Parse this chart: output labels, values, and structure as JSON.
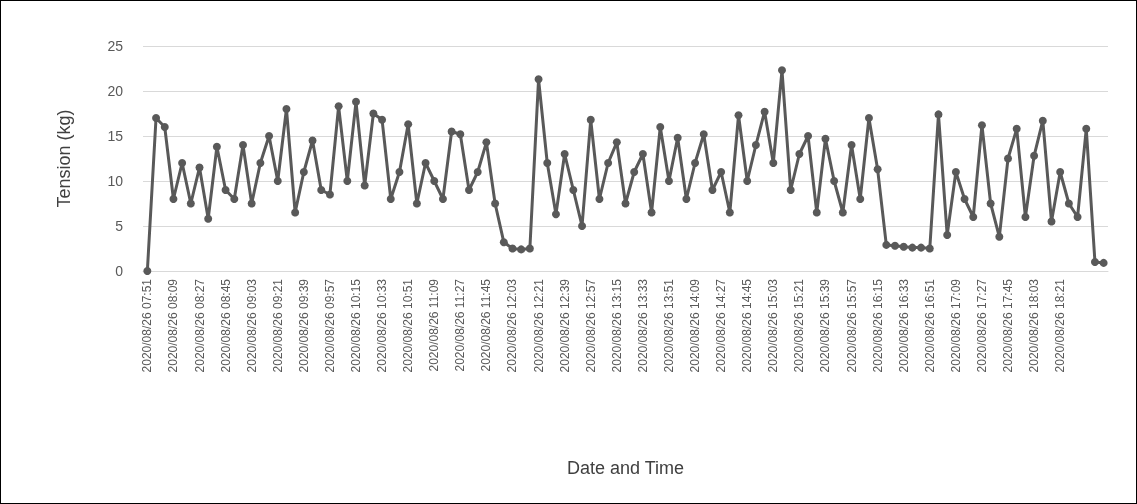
{
  "chart_data": {
    "type": "line",
    "xlabel": "Date and Time",
    "ylabel": "Tension (kg)",
    "categories": [
      "2020/08/26 07:51",
      null,
      null,
      "2020/08/26 08:09",
      null,
      null,
      "2020/08/26 08:27",
      null,
      null,
      "2020/08/26 08:45",
      null,
      null,
      "2020/08/26 09:03",
      null,
      null,
      "2020/08/26 09:21",
      null,
      null,
      "2020/08/26 09:39",
      null,
      null,
      "2020/08/26 09:57",
      null,
      null,
      "2020/08/26 10:15",
      null,
      null,
      "2020/08/26 10:33",
      null,
      null,
      "2020/08/26 10:51",
      null,
      null,
      "2020/08/26 11:09",
      null,
      null,
      "2020/08/26 11:27",
      null,
      null,
      "2020/08/26 11:45",
      null,
      null,
      "2020/08/26 12:03",
      null,
      null,
      "2020/08/26 12:21",
      null,
      null,
      "2020/08/26 12:39",
      null,
      null,
      "2020/08/26 12:57",
      null,
      null,
      "2020/08/26 13:15",
      null,
      null,
      "2020/08/26 13:33",
      null,
      null,
      "2020/08/26 13:51",
      null,
      null,
      "2020/08/26 14:09",
      null,
      null,
      "2020/08/26 14:27",
      null,
      null,
      "2020/08/26 14:45",
      null,
      null,
      "2020/08/26 15:03",
      null,
      null,
      "2020/08/26 15:21",
      null,
      null,
      "2020/08/26 15:39",
      null,
      null,
      "2020/08/26 15:57",
      null,
      null,
      "2020/08/26 16:15",
      null,
      null,
      "2020/08/26 16:33",
      null,
      null,
      "2020/08/26 16:51",
      null,
      null,
      "2020/08/26 17:09",
      null,
      null,
      "2020/08/26 17:27",
      null,
      null,
      "2020/08/26 17:45",
      null,
      null,
      "2020/08/26 18:03",
      null,
      null,
      "2020/08/26 18:21",
      null,
      null,
      null,
      null,
      null
    ],
    "series": [
      {
        "color": "#595959",
        "values": [
          0,
          17,
          16,
          8,
          12,
          7.5,
          11.5,
          5.8,
          13.8,
          9,
          8,
          14,
          7.5,
          12,
          15,
          10,
          18,
          6.5,
          11,
          14.5,
          9,
          8.5,
          18.3,
          10,
          18.8,
          9.5,
          17.5,
          16.8,
          8,
          11,
          16.3,
          7.5,
          12,
          10,
          8,
          15.5,
          15.2,
          9,
          11,
          14.3,
          7.5,
          3.2,
          2.5,
          2.4,
          2.5,
          21.3,
          12,
          6.3,
          13,
          9,
          5,
          16.8,
          8,
          12,
          14.3,
          7.5,
          11,
          13,
          6.5,
          16,
          10,
          14.8,
          8,
          12,
          15.2,
          9,
          11,
          6.5,
          17.3,
          10,
          14,
          17.7,
          12,
          22.3,
          9,
          13,
          15,
          6.5,
          14.7,
          10,
          6.5,
          14,
          8,
          17,
          11.3,
          2.9,
          2.8,
          2.7,
          2.6,
          2.6,
          2.5,
          17.4,
          4,
          11,
          8,
          6,
          16.2,
          7.5,
          3.8,
          12.5,
          15.8,
          6,
          12.8,
          16.7,
          5.5,
          11,
          7.5,
          6,
          15.8,
          1.0,
          0.9
        ]
      }
    ],
    "ylim": [
      0,
      25
    ],
    "yticks": [
      0,
      5,
      10,
      15,
      20,
      25
    ],
    "grid": "y",
    "marker": "circle",
    "line_style": "solid"
  }
}
